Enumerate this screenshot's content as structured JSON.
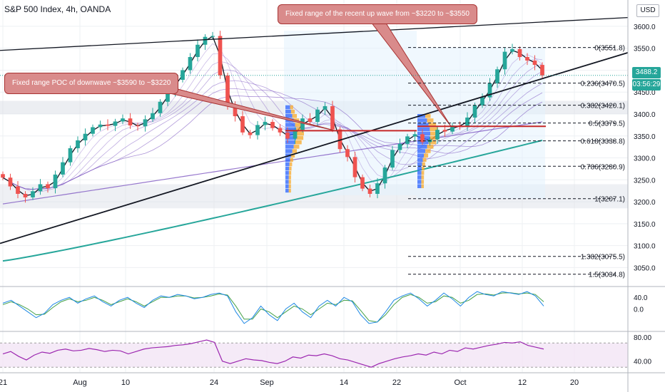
{
  "header": {
    "title": "S&P 500 Index, 4h, OANDA",
    "currency": "USD"
  },
  "annotations": {
    "up_wave": "Fixed range of the recent up wave from ~$3220 to ~$3550",
    "down_wave": "Fixed range POC of downwave ~$3590 to ~$3220"
  },
  "price_tags": {
    "last": "3488.2",
    "countdown": "03:56:29"
  },
  "colors": {
    "up": "#26a69a",
    "down": "#ef5350",
    "ma200": "#26a69a",
    "ma": "#7e57c2",
    "fib": "#131722",
    "rsi": "#9c27b0",
    "vol_up": "#2962ff",
    "vol_down": "#f9a825"
  },
  "chart_data": [
    {
      "type": "line",
      "title": "S&P 500 Index, 4h, OANDA",
      "x_ticks": [
        "21",
        "Aug",
        "10",
        "24",
        "Sep",
        "14",
        "22",
        "Oct",
        "12",
        "20"
      ],
      "y_ticks": [
        3050.0,
        3100.0,
        3150.0,
        3200.0,
        3250.0,
        3300.0,
        3350.0,
        3400.0,
        3450.0,
        3500.0,
        3550.0,
        3600.0
      ],
      "ylim": [
        3010,
        3660
      ],
      "close": [
        3255,
        3235,
        3218,
        3210,
        3224,
        3240,
        3231,
        3262,
        3290,
        3322,
        3340,
        3355,
        3370,
        3376,
        3373,
        3383,
        3390,
        3374,
        3372,
        3388,
        3402,
        3428,
        3452,
        3478,
        3500,
        3530,
        3558,
        3576,
        3578,
        3488,
        3420,
        3395,
        3358,
        3352,
        3375,
        3382,
        3368,
        3358,
        3344,
        3364,
        3390,
        3382,
        3410,
        3418,
        3365,
        3320,
        3302,
        3256,
        3230,
        3218,
        3242,
        3278,
        3318,
        3332,
        3349,
        3354,
        3336,
        3342,
        3364,
        3360,
        3374,
        3372,
        3392,
        3420,
        3438,
        3470,
        3502,
        3542,
        3548,
        3530,
        3522,
        3512,
        3488
      ],
      "fib_levels": [
        {
          "ratio": "0",
          "price": 3551.8,
          "label": "0(3551.8)"
        },
        {
          "ratio": "0.236",
          "price": 3470.5,
          "label": "0.236(3470.5)"
        },
        {
          "ratio": "0.382",
          "price": 3420.1,
          "label": "0.382(3420.1)"
        },
        {
          "ratio": "0.5",
          "price": 3379.5,
          "label": "0.5(3379.5)"
        },
        {
          "ratio": "0.618",
          "price": 3338.8,
          "label": "0.618(3338.8)"
        },
        {
          "ratio": "0.786",
          "price": 3280.9,
          "label": "0.786(3280.9)"
        },
        {
          "ratio": "1",
          "price": 3207.1,
          "label": "1(3207.1)"
        },
        {
          "ratio": "1.382",
          "price": 3075.5,
          "label": "1.382(3075.5)"
        },
        {
          "ratio": "1.5",
          "price": 3034.8,
          "label": "1.5(3034.8)"
        }
      ],
      "last_price": 3488.2
    },
    {
      "type": "line",
      "title": "",
      "y_ticks": [
        0.0,
        40.0
      ],
      "ylim": [
        -70,
        75
      ],
      "k": [
        20,
        30,
        10,
        -10,
        -30,
        -15,
        15,
        30,
        40,
        20,
        35,
        45,
        25,
        10,
        30,
        40,
        20,
        5,
        30,
        45,
        40,
        50,
        45,
        35,
        40,
        50,
        55,
        45,
        -10,
        -50,
        -30,
        10,
        -20,
        -40,
        0,
        20,
        -10,
        -30,
        10,
        30,
        10,
        40,
        25,
        -20,
        -50,
        -45,
        -10,
        30,
        45,
        55,
        35,
        10,
        30,
        55,
        35,
        10,
        40,
        60,
        50,
        45,
        60,
        55,
        50,
        60,
        45,
        10
      ],
      "d": [
        15,
        25,
        15,
        0,
        -20,
        -18,
        5,
        25,
        35,
        25,
        30,
        40,
        30,
        15,
        25,
        35,
        25,
        10,
        25,
        40,
        40,
        45,
        45,
        38,
        40,
        45,
        52,
        48,
        10,
        -35,
        -35,
        0,
        -10,
        -30,
        -10,
        10,
        0,
        -20,
        0,
        20,
        15,
        30,
        28,
        -5,
        -40,
        -45,
        -20,
        15,
        40,
        50,
        40,
        20,
        25,
        45,
        40,
        20,
        30,
        50,
        52,
        48,
        55,
        56,
        52,
        55,
        50,
        25
      ]
    },
    {
      "type": "line",
      "title": "",
      "y_ticks": [
        40.0,
        80.0
      ],
      "ylim": [
        22,
        88
      ],
      "rsi_bands": [
        30,
        70
      ],
      "values": [
        52,
        56,
        48,
        42,
        50,
        55,
        53,
        58,
        60,
        57,
        58,
        61,
        59,
        56,
        58,
        57,
        52,
        56,
        60,
        62,
        63,
        64,
        66,
        67,
        69,
        72,
        75,
        71,
        40,
        36,
        40,
        44,
        42,
        41,
        38,
        36,
        40,
        47,
        45,
        50,
        49,
        52,
        49,
        44,
        42,
        38,
        34,
        30,
        36,
        40,
        44,
        47,
        49,
        52,
        50,
        55,
        52,
        58,
        56,
        62,
        60,
        63,
        66,
        68,
        71,
        70,
        72,
        66,
        63,
        60
      ]
    }
  ]
}
